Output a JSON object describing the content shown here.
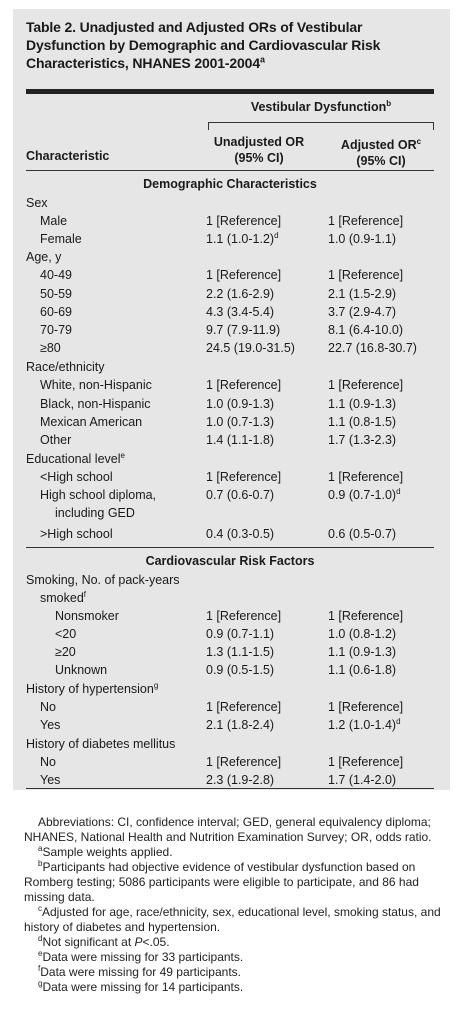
{
  "title": "Table 2. Unadjusted and Adjusted ORs of Vestibular Dysfunction by Demographic and Cardiovascular Risk Characteristics, NHANES 2001-2004",
  "title_sup": "a",
  "header": {
    "group": "Vestibular Dysfunction",
    "group_sup": "b",
    "characteristic": "Characteristic",
    "col1_line1": "Unadjusted OR",
    "col1_line2": "(95% CI)",
    "col2_line1": "Adjusted OR",
    "col2_sup": "c",
    "col2_line2": "(95% CI)"
  },
  "sections": {
    "demographic": "Demographic Characteristics",
    "cardio": "Cardiovascular Risk Factors"
  },
  "rows": [
    {
      "label": "Sex",
      "indent": 0
    },
    {
      "label": "Male",
      "indent": 1,
      "u": "1 [Reference]",
      "a": "1 [Reference]"
    },
    {
      "label": "Female",
      "indent": 1,
      "u": "1.1 (1.0-1.2)",
      "u_sup": "d",
      "a": "1.0 (0.9-1.1)"
    },
    {
      "label": "Age, y",
      "indent": 0
    },
    {
      "label": "40-49",
      "indent": 1,
      "u": "1 [Reference]",
      "a": "1 [Reference]"
    },
    {
      "label": "50-59",
      "indent": 1,
      "u": "2.2 (1.6-2.9)",
      "a": "2.1 (1.5-2.9)"
    },
    {
      "label": "60-69",
      "indent": 1,
      "u": "4.3 (3.4-5.4)",
      "a": "3.7 (2.9-4.7)"
    },
    {
      "label": "70-79",
      "indent": 1,
      "u": "9.7 (7.9-11.9)",
      "a": "8.1 (6.4-10.0)"
    },
    {
      "label": "≥80",
      "indent": 1,
      "u": "24.5 (19.0-31.5)",
      "a": "22.7 (16.8-30.7)"
    },
    {
      "label": "Race/ethnicity",
      "indent": 0
    },
    {
      "label": "White, non-Hispanic",
      "indent": 1,
      "u": "1 [Reference]",
      "a": "1 [Reference]"
    },
    {
      "label": "Black, non-Hispanic",
      "indent": 1,
      "u": "1.0 (0.9-1.3)",
      "a": "1.1 (0.9-1.3)"
    },
    {
      "label": "Mexican American",
      "indent": 1,
      "u": "1.0 (0.7-1.3)",
      "a": "1.1 (0.8-1.5)"
    },
    {
      "label": "Other",
      "indent": 1,
      "u": "1.4 (1.1-1.8)",
      "a": "1.7 (1.3-2.3)"
    },
    {
      "label": "Educational level",
      "label_sup": "e",
      "indent": 0
    },
    {
      "label": "<High school",
      "indent": 1,
      "u": "1 [Reference]",
      "a": "1 [Reference]"
    },
    {
      "label": "High school diploma,",
      "indent": 1,
      "u": "0.7 (0.6-0.7)",
      "a": "0.9 (0.7-1.0)",
      "a_sup": "d"
    },
    {
      "label": "including GED",
      "indent": 2
    },
    {
      "label": ">High school",
      "indent": 1,
      "u": "0.4 (0.3-0.5)",
      "a": "0.6 (0.5-0.7)"
    },
    {
      "label": "Smoking, No. of pack-years",
      "indent": 0
    },
    {
      "label": "smoked",
      "label_sup": "f",
      "indent": 1
    },
    {
      "label": "Nonsmoker",
      "indent": 2,
      "u": "1 [Reference]",
      "a": "1 [Reference]"
    },
    {
      "label": "<20",
      "indent": 2,
      "u": "0.9 (0.7-1.1)",
      "a": "1.0 (0.8-1.2)"
    },
    {
      "label": "≥20",
      "indent": 2,
      "u": "1.3 (1.1-1.5)",
      "a": "1.1 (0.9-1.3)"
    },
    {
      "label": "Unknown",
      "indent": 2,
      "u": "0.9 (0.5-1.5)",
      "a": "1.1 (0.6-1.8)"
    },
    {
      "label": "History of hypertension",
      "label_sup": "g",
      "indent": 0
    },
    {
      "label": "No",
      "indent": 1,
      "u": "1 [Reference]",
      "a": "1 [Reference]"
    },
    {
      "label": "Yes",
      "indent": 1,
      "u": "2.1 (1.8-2.4)",
      "a": "1.2 (1.0-1.4)",
      "a_sup": "d"
    },
    {
      "label": "History of diabetes mellitus",
      "indent": 0
    },
    {
      "label": "No",
      "indent": 1,
      "u": "1 [Reference]",
      "a": "1 [Reference]"
    },
    {
      "label": "Yes",
      "indent": 1,
      "u": "2.3 (1.9-2.8)",
      "a": "1.7 (1.4-2.0)"
    }
  ],
  "footnotes": {
    "abbrev": "Abbreviations: CI, confidence interval; GED, general equivalency diploma; NHANES, National Health and Nutrition Examination Survey; OR, odds ratio.",
    "a": "Sample weights applied.",
    "b": "Participants had objective evidence of vestibular dysfunction based on Romberg testing; 5086 participants were eligible to participate, and 86 had missing data.",
    "c": "Adjusted for age, race/ethnicity, sex, educational level, smoking status, and history of diabetes and hypertension.",
    "d_pre": "Not significant at",
    "d_p": "P",
    "d_post": "<.05.",
    "e": "Data were missing for 33 participants.",
    "f": "Data were missing for 49 participants.",
    "g": "Data were missing for 14 participants."
  }
}
